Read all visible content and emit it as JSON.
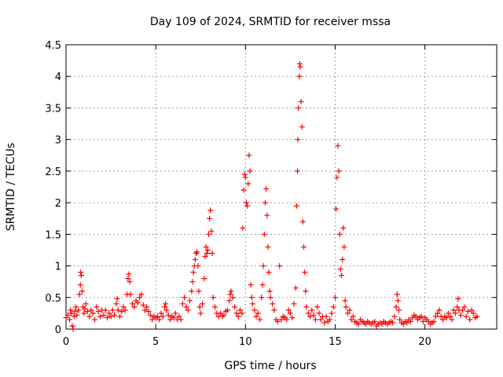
{
  "chart_data": {
    "type": "scatter",
    "title": "Day 109 of 2024, SRMTID for receiver mssa",
    "xlabel": "GPS time / hours",
    "ylabel": "SRMTID / TECUs",
    "xlim": [
      0,
      24
    ],
    "ylim": [
      0,
      4.5
    ],
    "x_ticks": [
      0,
      5,
      10,
      15,
      20
    ],
    "x_tick_labels": [
      "0",
      "5",
      "10",
      "15",
      "20"
    ],
    "y_ticks": [
      0,
      0.5,
      1,
      1.5,
      2,
      2.5,
      3,
      3.5,
      4,
      4.5
    ],
    "y_tick_labels": [
      "0",
      "0.5",
      "1",
      "1.5",
      "2",
      "2.5",
      "3",
      "3.5",
      "4",
      "4.5"
    ],
    "grid": true,
    "marker": "+",
    "color": "#ff0000",
    "series": [
      {
        "name": "SRMTID",
        "points": [
          [
            0.0,
            0.18
          ],
          [
            0.1,
            0.22
          ],
          [
            0.2,
            0.15
          ],
          [
            0.25,
            0.3
          ],
          [
            0.3,
            0.25
          ],
          [
            0.35,
            0.05
          ],
          [
            0.4,
            0.0
          ],
          [
            0.45,
            0.2
          ],
          [
            0.5,
            0.28
          ],
          [
            0.55,
            0.35
          ],
          [
            0.6,
            0.22
          ],
          [
            0.7,
            0.3
          ],
          [
            0.75,
            0.55
          ],
          [
            0.8,
            0.7
          ],
          [
            0.82,
            0.9
          ],
          [
            0.85,
            0.85
          ],
          [
            0.9,
            0.6
          ],
          [
            0.95,
            0.35
          ],
          [
            1.0,
            0.25
          ],
          [
            1.05,
            0.32
          ],
          [
            1.1,
            0.4
          ],
          [
            1.2,
            0.28
          ],
          [
            1.3,
            0.2
          ],
          [
            1.4,
            0.3
          ],
          [
            1.5,
            0.25
          ],
          [
            1.6,
            0.15
          ],
          [
            1.7,
            0.35
          ],
          [
            1.8,
            0.28
          ],
          [
            1.9,
            0.2
          ],
          [
            2.0,
            0.3
          ],
          [
            2.1,
            0.22
          ],
          [
            2.2,
            0.3
          ],
          [
            2.3,
            0.18
          ],
          [
            2.4,
            0.25
          ],
          [
            2.5,
            0.2
          ],
          [
            2.6,
            0.3
          ],
          [
            2.7,
            0.22
          ],
          [
            2.8,
            0.4
          ],
          [
            2.85,
            0.48
          ],
          [
            2.9,
            0.3
          ],
          [
            3.0,
            0.2
          ],
          [
            3.1,
            0.28
          ],
          [
            3.2,
            0.35
          ],
          [
            3.3,
            0.3
          ],
          [
            3.4,
            0.55
          ],
          [
            3.45,
            0.8
          ],
          [
            3.5,
            0.87
          ],
          [
            3.55,
            0.75
          ],
          [
            3.6,
            0.55
          ],
          [
            3.7,
            0.4
          ],
          [
            3.8,
            0.35
          ],
          [
            3.9,
            0.45
          ],
          [
            4.0,
            0.42
          ],
          [
            4.1,
            0.5
          ],
          [
            4.2,
            0.55
          ],
          [
            4.3,
            0.38
          ],
          [
            4.4,
            0.3
          ],
          [
            4.5,
            0.35
          ],
          [
            4.6,
            0.28
          ],
          [
            4.7,
            0.22
          ],
          [
            4.8,
            0.15
          ],
          [
            4.9,
            0.2
          ],
          [
            5.0,
            0.18
          ],
          [
            5.1,
            0.2
          ],
          [
            5.2,
            0.15
          ],
          [
            5.3,
            0.25
          ],
          [
            5.4,
            0.2
          ],
          [
            5.5,
            0.35
          ],
          [
            5.55,
            0.4
          ],
          [
            5.6,
            0.3
          ],
          [
            5.7,
            0.22
          ],
          [
            5.8,
            0.15
          ],
          [
            5.9,
            0.2
          ],
          [
            6.0,
            0.18
          ],
          [
            6.1,
            0.25
          ],
          [
            6.2,
            0.15
          ],
          [
            6.3,
            0.2
          ],
          [
            6.4,
            0.15
          ],
          [
            6.5,
            0.4
          ],
          [
            6.6,
            0.5
          ],
          [
            6.7,
            0.35
          ],
          [
            6.8,
            0.3
          ],
          [
            6.9,
            0.45
          ],
          [
            7.0,
            0.6
          ],
          [
            7.05,
            0.75
          ],
          [
            7.1,
            0.9
          ],
          [
            7.15,
            1.0
          ],
          [
            7.2,
            1.1
          ],
          [
            7.25,
            1.2
          ],
          [
            7.3,
            1.22
          ],
          [
            7.35,
            1.0
          ],
          [
            7.4,
            0.6
          ],
          [
            7.45,
            0.35
          ],
          [
            7.5,
            0.25
          ],
          [
            7.6,
            0.4
          ],
          [
            7.7,
            0.8
          ],
          [
            7.75,
            1.15
          ],
          [
            7.8,
            1.3
          ],
          [
            7.85,
            1.2
          ],
          [
            7.9,
            1.25
          ],
          [
            7.95,
            1.5
          ],
          [
            8.0,
            1.75
          ],
          [
            8.05,
            1.88
          ],
          [
            8.1,
            1.55
          ],
          [
            8.15,
            1.2
          ],
          [
            8.2,
            0.5
          ],
          [
            8.3,
            0.35
          ],
          [
            8.4,
            0.25
          ],
          [
            8.5,
            0.2
          ],
          [
            8.6,
            0.25
          ],
          [
            8.7,
            0.2
          ],
          [
            8.8,
            0.22
          ],
          [
            8.9,
            0.28
          ],
          [
            9.0,
            0.3
          ],
          [
            9.1,
            0.45
          ],
          [
            9.15,
            0.55
          ],
          [
            9.2,
            0.6
          ],
          [
            9.3,
            0.5
          ],
          [
            9.4,
            0.35
          ],
          [
            9.5,
            0.25
          ],
          [
            9.6,
            0.2
          ],
          [
            9.7,
            0.3
          ],
          [
            9.8,
            0.25
          ],
          [
            9.85,
            1.6
          ],
          [
            9.9,
            2.2
          ],
          [
            9.95,
            2.45
          ],
          [
            10.0,
            2.4
          ],
          [
            10.05,
            2.0
          ],
          [
            10.1,
            1.95
          ],
          [
            10.15,
            2.3
          ],
          [
            10.2,
            2.75
          ],
          [
            10.25,
            2.5
          ],
          [
            10.3,
            0.7
          ],
          [
            10.35,
            0.5
          ],
          [
            10.4,
            0.4
          ],
          [
            10.5,
            0.3
          ],
          [
            10.6,
            0.2
          ],
          [
            10.7,
            0.25
          ],
          [
            10.8,
            0.15
          ],
          [
            10.9,
            0.5
          ],
          [
            10.95,
            0.7
          ],
          [
            11.0,
            1.0
          ],
          [
            11.05,
            1.5
          ],
          [
            11.1,
            2.0
          ],
          [
            11.15,
            2.22
          ],
          [
            11.2,
            1.8
          ],
          [
            11.25,
            1.3
          ],
          [
            11.3,
            0.9
          ],
          [
            11.35,
            0.6
          ],
          [
            11.4,
            0.5
          ],
          [
            11.5,
            0.4
          ],
          [
            11.6,
            0.3
          ],
          [
            11.7,
            0.15
          ],
          [
            11.8,
            0.12
          ],
          [
            11.9,
            1.0
          ],
          [
            12.0,
            0.15
          ],
          [
            12.1,
            0.2
          ],
          [
            12.2,
            0.18
          ],
          [
            12.3,
            0.15
          ],
          [
            12.4,
            0.3
          ],
          [
            12.5,
            0.25
          ],
          [
            12.6,
            0.18
          ],
          [
            12.7,
            0.4
          ],
          [
            12.8,
            0.65
          ],
          [
            12.85,
            1.95
          ],
          [
            12.9,
            2.5
          ],
          [
            12.92,
            3.0
          ],
          [
            12.95,
            3.5
          ],
          [
            13.0,
            4.0
          ],
          [
            13.02,
            4.2
          ],
          [
            13.05,
            4.15
          ],
          [
            13.1,
            3.6
          ],
          [
            13.15,
            3.2
          ],
          [
            13.2,
            1.7
          ],
          [
            13.25,
            1.3
          ],
          [
            13.3,
            0.9
          ],
          [
            13.35,
            0.6
          ],
          [
            13.4,
            0.35
          ],
          [
            13.5,
            0.25
          ],
          [
            13.6,
            0.2
          ],
          [
            13.7,
            0.3
          ],
          [
            13.8,
            0.22
          ],
          [
            13.9,
            0.15
          ],
          [
            14.0,
            0.35
          ],
          [
            14.1,
            0.25
          ],
          [
            14.2,
            0.15
          ],
          [
            14.3,
            0.2
          ],
          [
            14.4,
            0.1
          ],
          [
            14.5,
            0.2
          ],
          [
            14.6,
            0.12
          ],
          [
            14.7,
            0.15
          ],
          [
            14.8,
            0.25
          ],
          [
            14.9,
            0.35
          ],
          [
            15.0,
            0.5
          ],
          [
            15.05,
            1.9
          ],
          [
            15.1,
            2.4
          ],
          [
            15.15,
            2.9
          ],
          [
            15.2,
            2.5
          ],
          [
            15.25,
            1.5
          ],
          [
            15.3,
            0.95
          ],
          [
            15.35,
            0.85
          ],
          [
            15.4,
            1.1
          ],
          [
            15.45,
            1.6
          ],
          [
            15.5,
            1.3
          ],
          [
            15.55,
            0.45
          ],
          [
            15.6,
            0.35
          ],
          [
            15.7,
            0.25
          ],
          [
            15.8,
            0.3
          ],
          [
            15.9,
            0.15
          ],
          [
            16.0,
            0.2
          ],
          [
            16.1,
            0.12
          ],
          [
            16.2,
            0.1
          ],
          [
            16.3,
            0.08
          ],
          [
            16.4,
            0.15
          ],
          [
            16.5,
            0.12
          ],
          [
            16.6,
            0.1
          ],
          [
            16.7,
            0.08
          ],
          [
            16.8,
            0.12
          ],
          [
            16.9,
            0.1
          ],
          [
            17.0,
            0.08
          ],
          [
            17.1,
            0.1
          ],
          [
            17.2,
            0.12
          ],
          [
            17.3,
            0.05
          ],
          [
            17.4,
            0.08
          ],
          [
            17.5,
            0.1
          ],
          [
            17.6,
            0.08
          ],
          [
            17.7,
            0.12
          ],
          [
            17.8,
            0.1
          ],
          [
            17.9,
            0.08
          ],
          [
            18.0,
            0.1
          ],
          [
            18.1,
            0.12
          ],
          [
            18.2,
            0.1
          ],
          [
            18.3,
            0.2
          ],
          [
            18.4,
            0.35
          ],
          [
            18.45,
            0.55
          ],
          [
            18.5,
            0.45
          ],
          [
            18.55,
            0.3
          ],
          [
            18.6,
            0.15
          ],
          [
            18.7,
            0.1
          ],
          [
            18.8,
            0.08
          ],
          [
            18.9,
            0.12
          ],
          [
            19.0,
            0.1
          ],
          [
            19.1,
            0.15
          ],
          [
            19.2,
            0.12
          ],
          [
            19.3,
            0.18
          ],
          [
            19.4,
            0.22
          ],
          [
            19.5,
            0.2
          ],
          [
            19.6,
            0.15
          ],
          [
            19.7,
            0.18
          ],
          [
            19.8,
            0.2
          ],
          [
            19.9,
            0.12
          ],
          [
            20.0,
            0.18
          ],
          [
            20.1,
            0.15
          ],
          [
            20.2,
            0.12
          ],
          [
            20.3,
            0.08
          ],
          [
            20.4,
            0.1
          ],
          [
            20.5,
            0.12
          ],
          [
            20.6,
            0.2
          ],
          [
            20.7,
            0.25
          ],
          [
            20.8,
            0.3
          ],
          [
            20.9,
            0.2
          ],
          [
            21.0,
            0.15
          ],
          [
            21.1,
            0.2
          ],
          [
            21.2,
            0.18
          ],
          [
            21.3,
            0.25
          ],
          [
            21.4,
            0.2
          ],
          [
            21.5,
            0.15
          ],
          [
            21.6,
            0.3
          ],
          [
            21.7,
            0.25
          ],
          [
            21.8,
            0.35
          ],
          [
            21.85,
            0.48
          ],
          [
            21.9,
            0.3
          ],
          [
            22.0,
            0.22
          ],
          [
            22.1,
            0.3
          ],
          [
            22.2,
            0.35
          ],
          [
            22.3,
            0.2
          ],
          [
            22.4,
            0.28
          ],
          [
            22.5,
            0.15
          ],
          [
            22.6,
            0.3
          ],
          [
            22.7,
            0.25
          ],
          [
            22.8,
            0.18
          ],
          [
            22.9,
            0.2
          ]
        ]
      }
    ]
  }
}
